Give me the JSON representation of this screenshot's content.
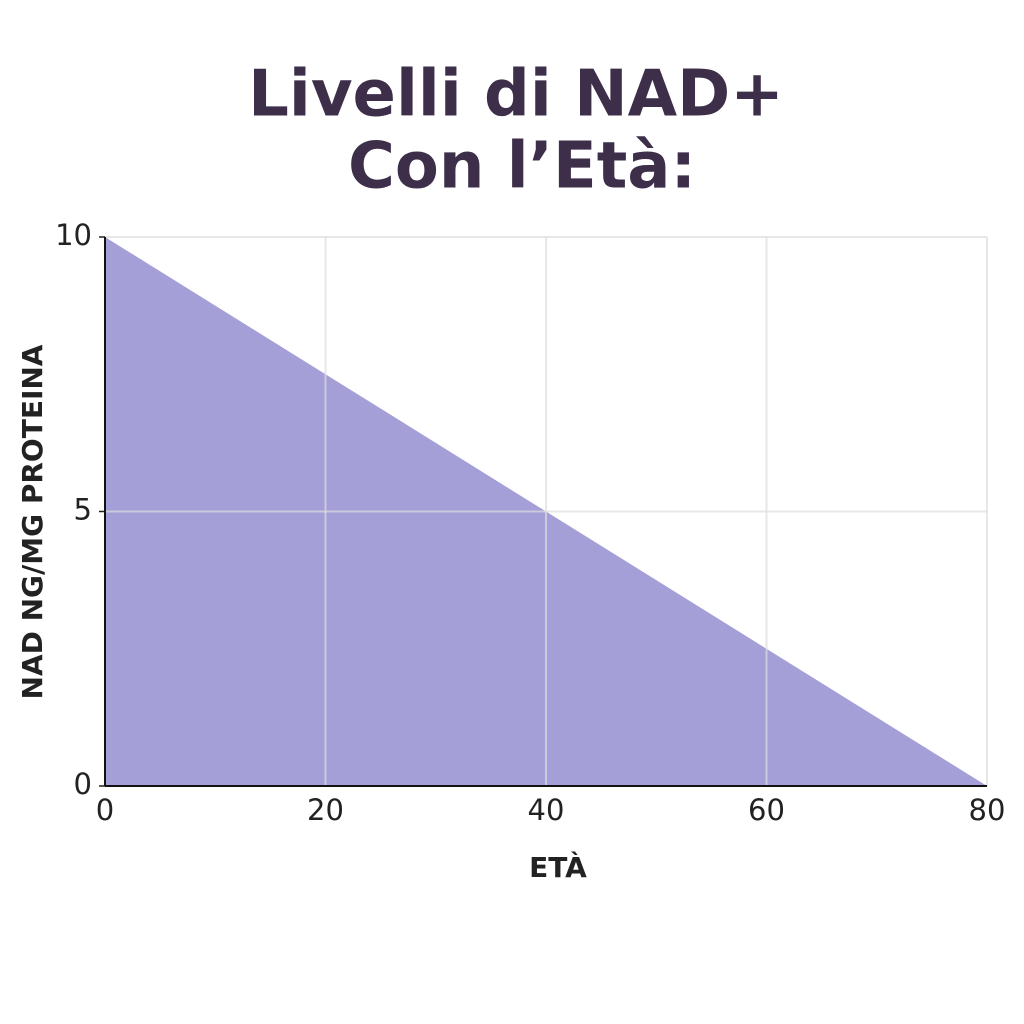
{
  "chart_data": {
    "type": "area",
    "title": [
      "Livelli di NAD+",
      "Con l’Età:"
    ],
    "x_label": "ETÀ",
    "y_label": "NAD NG/MG PROTEINA",
    "x": [
      0,
      80
    ],
    "values": [
      10,
      0
    ],
    "color": "#a59fd7",
    "xlim": [
      0,
      80
    ],
    "xticks": [
      0,
      20,
      40,
      60,
      80
    ],
    "ylim": [
      0,
      10
    ],
    "yticks": [
      0,
      5,
      10
    ],
    "grid": true
  }
}
